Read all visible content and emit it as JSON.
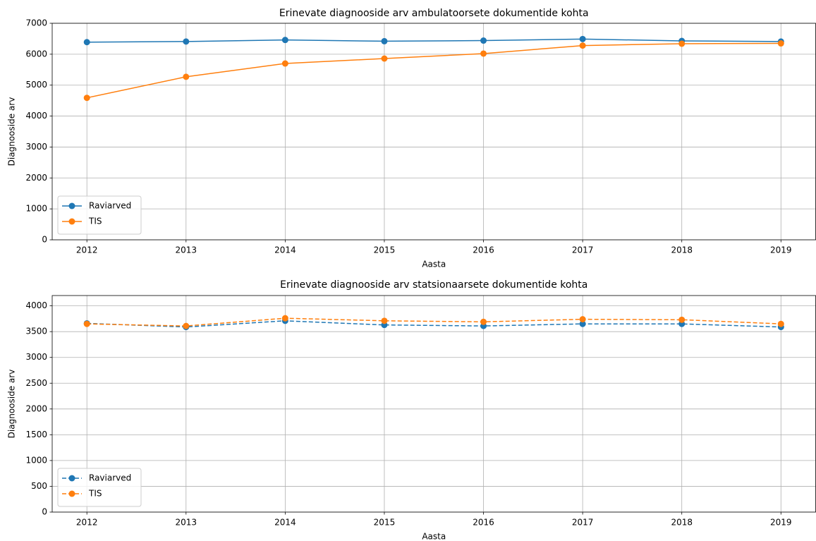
{
  "chart_data": [
    {
      "type": "line",
      "title": "Erinevate diagnooside arv ambulatoorsete dokumentide kohta",
      "xlabel": "Aasta",
      "ylabel": "Diagnooside arv",
      "x": [
        2012,
        2013,
        2014,
        2015,
        2016,
        2017,
        2018,
        2019
      ],
      "series": [
        {
          "name": "Raviarved",
          "color": "#1f77b4",
          "values": [
            6390,
            6410,
            6460,
            6420,
            6440,
            6490,
            6430,
            6410
          ]
        },
        {
          "name": "TIS",
          "color": "#ff7f0e",
          "values": [
            4590,
            5270,
            5700,
            5860,
            6020,
            6280,
            6340,
            6350
          ]
        }
      ],
      "xlim": [
        2011.65,
        2019.35
      ],
      "xticks": [
        2012,
        2013,
        2014,
        2015,
        2016,
        2017,
        2018,
        2019
      ],
      "ylim": [
        0,
        7000
      ],
      "yticks": [
        0,
        1000,
        2000,
        3000,
        4000,
        5000,
        6000,
        7000
      ],
      "grid": true,
      "legend": "lower left",
      "linestyle": "solid"
    },
    {
      "type": "line",
      "title": "Erinevate diagnooside arv statsionaarsete dokumentide kohta",
      "xlabel": "Aasta",
      "ylabel": "Diagnooside arv",
      "x": [
        2012,
        2013,
        2014,
        2015,
        2016,
        2017,
        2018,
        2019
      ],
      "series": [
        {
          "name": "Raviarved",
          "color": "#1f77b4",
          "values": [
            3660,
            3590,
            3710,
            3630,
            3610,
            3650,
            3650,
            3590
          ]
        },
        {
          "name": "TIS",
          "color": "#ff7f0e",
          "values": [
            3650,
            3610,
            3760,
            3710,
            3690,
            3740,
            3730,
            3650
          ]
        }
      ],
      "xlim": [
        2011.65,
        2019.35
      ],
      "xticks": [
        2012,
        2013,
        2014,
        2015,
        2016,
        2017,
        2018,
        2019
      ],
      "ylim": [
        0,
        4200
      ],
      "yticks": [
        0,
        500,
        1000,
        1500,
        2000,
        2500,
        3000,
        3500,
        4000
      ],
      "grid": true,
      "legend": "lower left",
      "linestyle": "dashed"
    }
  ]
}
